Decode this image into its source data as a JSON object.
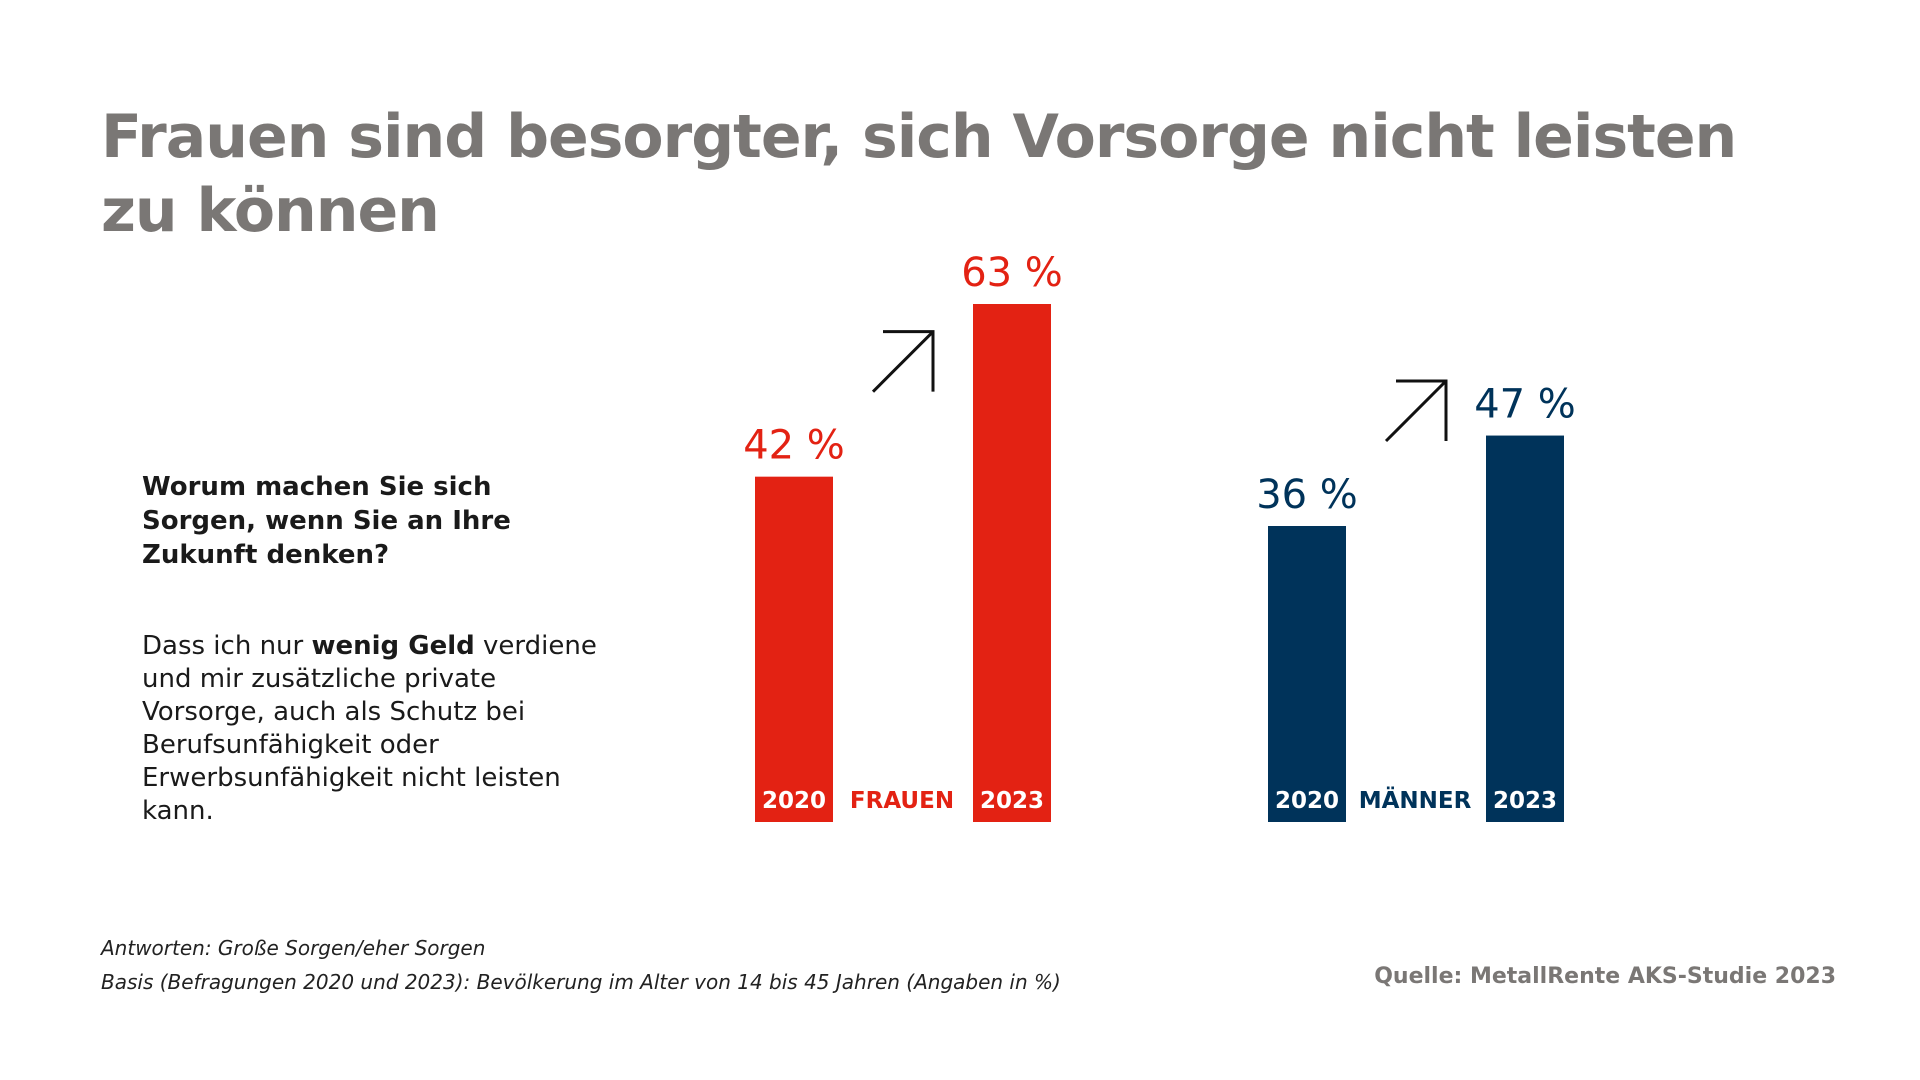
{
  "title": "Frauen sind besorgter, sich Vorsorge nicht leisten zu können",
  "question": "Worum machen Sie sich Sorgen, wenn Sie an Ihre Zukunft denken?",
  "answer": {
    "pre": "Dass ich nur ",
    "bold": "wenig Geld",
    "post": " verdiene und mir zusätzliche private Vorsorge, auch als Schutz bei Berufsunfähigkeit oder Erwerbsunfähigkeit nicht leisten kann."
  },
  "footnotes": {
    "line1": "Antworten: Große Sorgen/eher Sorgen",
    "line2": "Basis (Befragungen 2020 und 2023): Bevölkerung im Alter von 14 bis 45 Jahren (Angaben in %)"
  },
  "source": "Quelle: MetallRente AKS-Studie 2023",
  "chart_data": {
    "type": "bar",
    "categories": [
      "2020",
      "2023"
    ],
    "groups": [
      {
        "name": "FRAUEN",
        "color": "#e32213",
        "values": [
          42,
          63
        ],
        "labels": [
          "42 %",
          "63 %"
        ]
      },
      {
        "name": "MÄNNER",
        "color": "#00335a",
        "values": [
          36,
          47
        ],
        "labels": [
          "36 %",
          "47 %"
        ]
      }
    ],
    "ylim": [
      0,
      63
    ],
    "grid": false,
    "arrow_color": "#111111"
  }
}
